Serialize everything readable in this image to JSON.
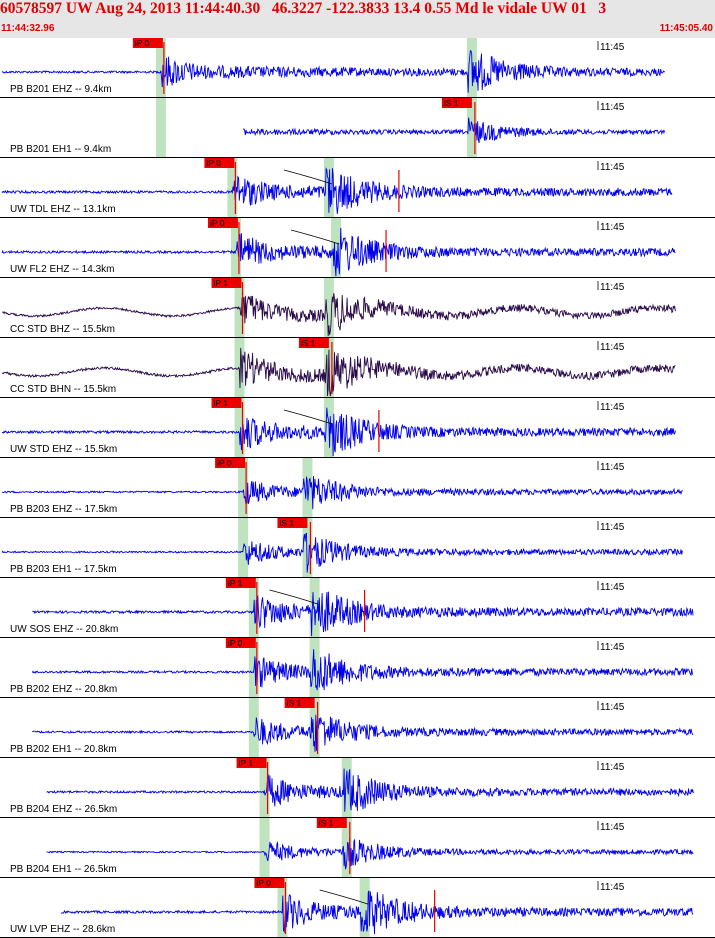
{
  "header": {
    "title": "60578597 UW Aug 24, 2013 11:44:40.30   46.3227 -122.3833 13.4 0.55 Md le vidale UW 01   3",
    "start_time": "11:44:32.96",
    "end_time": "11:45:05.40"
  },
  "colors": {
    "header_bg": "#e6e6e6",
    "header_text": "#e00000",
    "trace_default": "#0000ee",
    "trace_broadband": "#2a0a4a",
    "pick_box": "#ee0000",
    "window_band": "#b8e0b8",
    "synthetic": "#ee0000"
  },
  "traces": [
    {
      "label": "PB B201 EHZ -- 9.4km",
      "time_tick": "11:45",
      "pick": {
        "label": "iP 0",
        "time": 0.4
      },
      "s_time": 0.66,
      "p_onset": 0.225,
      "end": 0.93,
      "amp": 0.9,
      "start": 0.0,
      "color": "default",
      "synthetic": false
    },
    {
      "label": "PB B201 EH1 -- 9.4km",
      "time_tick": "11:45",
      "pick": {
        "label": "iS 1",
        "time": 0.66
      },
      "s_time": 0.66,
      "p_onset": 0.225,
      "end": 0.93,
      "amp": 0.5,
      "start": 0.315,
      "color": "default",
      "synthetic": false
    },
    {
      "label": "UW TDL EHZ -- 13.1km",
      "time_tick": "11:45",
      "pick": {
        "label": "iP 0",
        "time": 0.3
      },
      "s_time": 0.46,
      "p_onset": 0.325,
      "end": 0.94,
      "amp": 1.0,
      "start": 0.0,
      "color": "default",
      "synthetic": true
    },
    {
      "label": "UW FL2 EHZ -- 14.3km",
      "time_tick": "11:45",
      "pick": {
        "label": "iP 0",
        "time": 0.31
      },
      "s_time": 0.47,
      "p_onset": 0.33,
      "end": 0.945,
      "amp": 1.0,
      "start": 0.0,
      "color": "default",
      "synthetic": true
    },
    {
      "label": "CC STD BHZ -- 15.5km",
      "time_tick": "11:45",
      "pick": {
        "label": "iP 1",
        "time": 0.3
      },
      "s_time": 0.46,
      "p_onset": 0.335,
      "end": 0.945,
      "amp": 0.9,
      "start": 0.0,
      "color": "broadband",
      "synthetic": false
    },
    {
      "label": "CC STD BHN -- 15.5km",
      "time_tick": "11:45",
      "pick": {
        "label": "iS 1",
        "time": 0.383
      },
      "s_time": 0.46,
      "p_onset": 0.335,
      "end": 0.945,
      "amp": 1.0,
      "start": 0.0,
      "color": "broadband",
      "synthetic": false
    },
    {
      "label": "UW STD EHZ -- 15.5km",
      "time_tick": "11:45",
      "pick": {
        "label": "iP 1",
        "time": 0.3
      },
      "s_time": 0.46,
      "p_onset": 0.335,
      "end": 0.945,
      "amp": 1.0,
      "start": 0.0,
      "color": "default",
      "synthetic": true
    },
    {
      "label": "PB B203 EHZ -- 17.5km",
      "time_tick": "11:45",
      "pick": {
        "label": "iP 0",
        "time": 0.305
      },
      "s_time": 0.43,
      "p_onset": 0.34,
      "end": 0.955,
      "amp": 0.7,
      "start": 0.0,
      "color": "default",
      "synthetic": false
    },
    {
      "label": "PB B203 EH1 -- 17.5km",
      "time_tick": "11:45",
      "pick": {
        "label": "iS 1",
        "time": 0.395
      },
      "s_time": 0.43,
      "p_onset": 0.34,
      "end": 0.955,
      "amp": 0.7,
      "start": 0.0,
      "color": "default",
      "synthetic": false
    },
    {
      "label": "UW SOS EHZ -- 20.8km",
      "time_tick": "11:45",
      "pick": {
        "label": "iP 1",
        "time": 0.32
      },
      "s_time": 0.44,
      "p_onset": 0.355,
      "end": 0.97,
      "amp": 1.0,
      "start": 0.02,
      "color": "default",
      "synthetic": true
    },
    {
      "label": "PB B202 EHZ -- 20.8km",
      "time_tick": "11:45",
      "pick": {
        "label": "iP 0",
        "time": 0.32
      },
      "s_time": 0.44,
      "p_onset": 0.355,
      "end": 0.97,
      "amp": 0.9,
      "start": 0.02,
      "color": "default",
      "synthetic": false
    },
    {
      "label": "PB B202 EH1 -- 20.8km",
      "time_tick": "11:45",
      "pick": {
        "label": "iS 1",
        "time": 0.415
      },
      "s_time": 0.44,
      "p_onset": 0.355,
      "end": 0.97,
      "amp": 0.8,
      "start": 0.02,
      "color": "default",
      "synthetic": false
    },
    {
      "label": "PB B204 EHZ -- 26.5km",
      "time_tick": "11:45",
      "pick": {
        "label": "iP 1",
        "time": 0.34
      },
      "s_time": 0.485,
      "p_onset": 0.37,
      "end": 0.97,
      "amp": 0.9,
      "start": 0.04,
      "color": "default",
      "synthetic": false
    },
    {
      "label": "PB B204 EH1 -- 26.5km",
      "time_tick": "11:45",
      "pick": {
        "label": "iS 1",
        "time": 0.455
      },
      "s_time": 0.485,
      "p_onset": 0.37,
      "end": 0.97,
      "amp": 0.6,
      "start": 0.04,
      "color": "default",
      "synthetic": false
    },
    {
      "label": "UW LVP EHZ -- 28.6km",
      "time_tick": "11:45",
      "pick": {
        "label": "iP 0",
        "time": 0.36
      },
      "s_time": 0.51,
      "p_onset": 0.395,
      "end": 0.97,
      "amp": 1.0,
      "start": 0.06,
      "color": "default",
      "synthetic": true
    }
  ]
}
